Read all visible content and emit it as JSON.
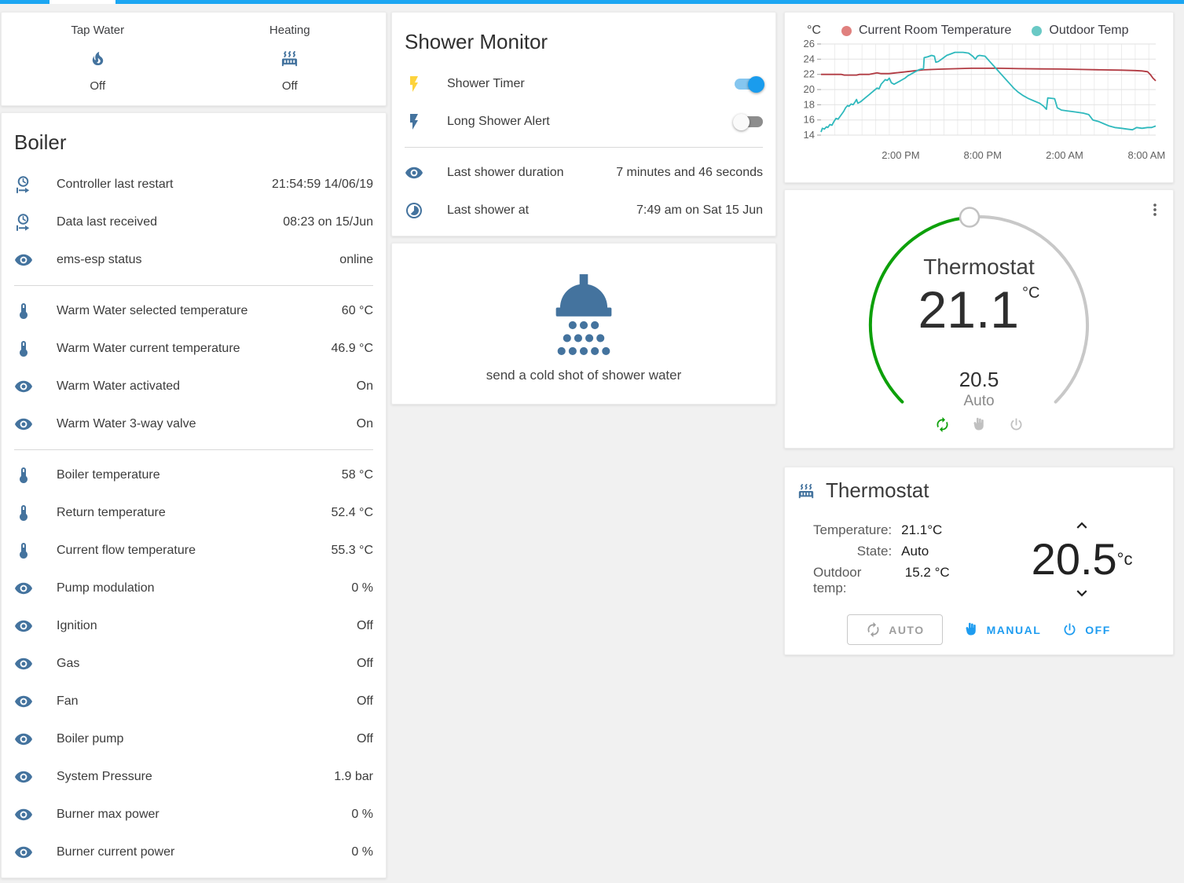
{
  "theme": {
    "header_bar": "#1ba6f2",
    "icon_blue": "#44739e",
    "flash_yellow": "#fdd33c",
    "toggle_on_knob": "#1a9ced",
    "toggle_on_track": "#85c6ef",
    "toggle_off_track": "#8d8d8d",
    "dial_green": "#0da00a",
    "action_blue": "#1e9cf0"
  },
  "glance_card": {
    "items": [
      {
        "label": "Tap Water",
        "icon": "fire-icon",
        "state": "Off"
      },
      {
        "label": "Heating",
        "icon": "radiator-icon",
        "state": "Off"
      }
    ]
  },
  "boiler_card": {
    "title": "Boiler",
    "sections": [
      [
        {
          "icon": "clock-start-icon",
          "label": "Controller last restart",
          "value": "21:54:59 14/06/19"
        },
        {
          "icon": "clock-start-icon",
          "label": "Data last received",
          "value": "08:23 on 15/Jun"
        },
        {
          "icon": "eye-icon",
          "label": "ems-esp status",
          "value": "online"
        }
      ],
      [
        {
          "icon": "thermometer-icon",
          "label": "Warm Water selected temperature",
          "value": "60 °C"
        },
        {
          "icon": "thermometer-icon",
          "label": "Warm Water current temperature",
          "value": "46.9 °C"
        },
        {
          "icon": "eye-icon",
          "label": "Warm Water activated",
          "value": "On"
        },
        {
          "icon": "eye-icon",
          "label": "Warm Water 3-way valve",
          "value": "On"
        }
      ],
      [
        {
          "icon": "thermometer-icon",
          "label": "Boiler temperature",
          "value": "58 °C"
        },
        {
          "icon": "thermometer-icon",
          "label": "Return temperature",
          "value": "52.4 °C"
        },
        {
          "icon": "thermometer-icon",
          "label": "Current flow temperature",
          "value": "55.3 °C"
        },
        {
          "icon": "eye-icon",
          "label": "Pump modulation",
          "value": "0 %"
        },
        {
          "icon": "eye-icon",
          "label": "Ignition",
          "value": "Off"
        },
        {
          "icon": "eye-icon",
          "label": "Gas",
          "value": "Off"
        },
        {
          "icon": "eye-icon",
          "label": "Fan",
          "value": "Off"
        },
        {
          "icon": "eye-icon",
          "label": "Boiler pump",
          "value": "Off"
        },
        {
          "icon": "eye-icon",
          "label": "System Pressure",
          "value": "1.9 bar"
        },
        {
          "icon": "eye-icon",
          "label": "Burner max power",
          "value": "0 %"
        },
        {
          "icon": "eye-icon",
          "label": "Burner current power",
          "value": "0 %"
        }
      ]
    ]
  },
  "shower_card": {
    "title": "Shower Monitor",
    "toggles": [
      {
        "icon": "flash-icon",
        "icon_color": "#fdd33c",
        "label": "Shower Timer",
        "state": "on"
      },
      {
        "icon": "flash-icon",
        "icon_color": "#44739e",
        "label": "Long Shower Alert",
        "state": "off"
      }
    ],
    "rows": [
      {
        "icon": "eye-icon",
        "label": "Last shower duration",
        "value": "7 minutes and 46 seconds"
      },
      {
        "icon": "timelapse-icon",
        "label": "Last shower at",
        "value": "7:49 am on Sat 15 Jun"
      }
    ]
  },
  "shower_action_card": {
    "icon": "shower-head-icon",
    "label": "send a cold shot of shower water"
  },
  "chart_data": {
    "type": "line",
    "ylabel": "°C",
    "ylim": [
      14,
      26
    ],
    "yticks": [
      14,
      16,
      18,
      20,
      22,
      24,
      26
    ],
    "x_hours_span": 24.5,
    "xticks": [
      {
        "t": 5.83,
        "label": "2:00 PM"
      },
      {
        "t": 11.83,
        "label": "8:00 PM"
      },
      {
        "t": 17.83,
        "label": "2:00 AM"
      },
      {
        "t": 23.83,
        "label": "8:00 AM"
      }
    ],
    "grid": true,
    "legend_position": "top",
    "series": [
      {
        "name": "Current Room Temperature",
        "color": "#b13a42",
        "dot_color": "#e0807e",
        "points": [
          [
            0,
            22.0
          ],
          [
            1.5,
            22.0
          ],
          [
            1.7,
            21.9
          ],
          [
            2.6,
            21.9
          ],
          [
            2.8,
            22.0
          ],
          [
            3.5,
            22.0
          ],
          [
            3.8,
            22.1
          ],
          [
            4.1,
            22.2
          ],
          [
            4.4,
            22.1
          ],
          [
            5.0,
            22.1
          ],
          [
            5.5,
            22.2
          ],
          [
            6.0,
            22.3
          ],
          [
            6.5,
            22.4
          ],
          [
            7.0,
            22.5
          ],
          [
            7.5,
            22.6
          ],
          [
            8.2,
            22.65
          ],
          [
            9.0,
            22.7
          ],
          [
            10.0,
            22.75
          ],
          [
            11.0,
            22.8
          ],
          [
            13.0,
            22.8
          ],
          [
            14.5,
            22.75
          ],
          [
            16.0,
            22.72
          ],
          [
            17.5,
            22.7
          ],
          [
            19.0,
            22.65
          ],
          [
            20.5,
            22.6
          ],
          [
            22.0,
            22.55
          ],
          [
            23.0,
            22.5
          ],
          [
            23.5,
            22.45
          ],
          [
            23.9,
            22.35
          ],
          [
            24.1,
            22.0
          ],
          [
            24.3,
            21.5
          ],
          [
            24.5,
            21.15
          ]
        ]
      },
      {
        "name": "Outdoor Temp",
        "color": "#2fb9bd",
        "dot_color": "#69c9c5",
        "points": [
          [
            0,
            14.4
          ],
          [
            0.1,
            14.9
          ],
          [
            0.25,
            14.8
          ],
          [
            0.4,
            15.1
          ],
          [
            0.5,
            15.0
          ],
          [
            0.65,
            15.4
          ],
          [
            0.8,
            15.3
          ],
          [
            0.95,
            15.8
          ],
          [
            1.1,
            16.2
          ],
          [
            1.25,
            16.1
          ],
          [
            1.45,
            16.6
          ],
          [
            1.65,
            17.1
          ],
          [
            1.8,
            17.6
          ],
          [
            1.95,
            17.9
          ],
          [
            2.05,
            17.8
          ],
          [
            2.2,
            18.1
          ],
          [
            2.35,
            18.0
          ],
          [
            2.5,
            18.4
          ],
          [
            2.6,
            18.7
          ],
          [
            2.7,
            18.2
          ],
          [
            2.9,
            18.4
          ],
          [
            3.1,
            18.7
          ],
          [
            3.3,
            19.0
          ],
          [
            3.5,
            19.3
          ],
          [
            3.7,
            19.6
          ],
          [
            3.9,
            19.9
          ],
          [
            4.1,
            20.2
          ],
          [
            4.25,
            20.1
          ],
          [
            4.4,
            20.7
          ],
          [
            4.55,
            21.0
          ],
          [
            4.7,
            21.3
          ],
          [
            4.85,
            21.2
          ],
          [
            5.0,
            21.5
          ],
          [
            5.15,
            20.9
          ],
          [
            5.35,
            20.7
          ],
          [
            5.55,
            20.9
          ],
          [
            5.75,
            21.1
          ],
          [
            5.95,
            21.3
          ],
          [
            6.15,
            21.5
          ],
          [
            6.35,
            21.8
          ],
          [
            6.55,
            22.0
          ],
          [
            6.75,
            22.2
          ],
          [
            6.95,
            22.4
          ],
          [
            7.15,
            22.6
          ],
          [
            7.35,
            22.7
          ],
          [
            7.5,
            22.7
          ],
          [
            7.55,
            24.2
          ],
          [
            7.8,
            24.3
          ],
          [
            8.1,
            24.5
          ],
          [
            8.3,
            24.4
          ],
          [
            8.4,
            23.6
          ],
          [
            8.6,
            23.7
          ],
          [
            8.9,
            24.1
          ],
          [
            9.2,
            24.5
          ],
          [
            9.5,
            24.7
          ],
          [
            9.8,
            24.9
          ],
          [
            10.4,
            24.9
          ],
          [
            10.8,
            24.8
          ],
          [
            11.1,
            24.4
          ],
          [
            11.3,
            24.0
          ],
          [
            11.45,
            24.4
          ],
          [
            11.6,
            24.5
          ],
          [
            12.0,
            24.4
          ],
          [
            12.3,
            23.8
          ],
          [
            12.6,
            23.2
          ],
          [
            12.9,
            22.6
          ],
          [
            13.2,
            22.0
          ],
          [
            13.5,
            21.4
          ],
          [
            13.8,
            20.8
          ],
          [
            14.1,
            20.2
          ],
          [
            14.4,
            19.7
          ],
          [
            14.8,
            19.2
          ],
          [
            15.2,
            18.8
          ],
          [
            15.6,
            18.5
          ],
          [
            16.0,
            18.2
          ],
          [
            16.3,
            17.8
          ],
          [
            16.5,
            17.4
          ],
          [
            16.6,
            18.9
          ],
          [
            17.1,
            18.8
          ],
          [
            17.3,
            17.6
          ],
          [
            17.6,
            17.3
          ],
          [
            18.0,
            17.2
          ],
          [
            18.4,
            17.1
          ],
          [
            18.8,
            17.0
          ],
          [
            19.2,
            16.9
          ],
          [
            19.6,
            16.7
          ],
          [
            19.9,
            16.0
          ],
          [
            20.3,
            15.8
          ],
          [
            20.7,
            15.5
          ],
          [
            21.1,
            15.2
          ],
          [
            21.5,
            15.0
          ],
          [
            22.0,
            14.9
          ],
          [
            22.4,
            14.8
          ],
          [
            22.8,
            14.7
          ],
          [
            23.1,
            15.0
          ],
          [
            23.5,
            14.9
          ],
          [
            23.9,
            15.0
          ],
          [
            24.2,
            15.0
          ],
          [
            24.5,
            15.2
          ]
        ]
      }
    ]
  },
  "dial_card": {
    "title": "Thermostat",
    "current": "21.1",
    "unit": "°C",
    "target": "20.5",
    "mode": "Auto",
    "actions": [
      {
        "icon": "autorenew-icon",
        "state": "active"
      },
      {
        "icon": "hand-icon",
        "state": "inactive"
      },
      {
        "icon": "power-icon",
        "state": "inactive"
      }
    ]
  },
  "thermostat_card": {
    "title": "Thermostat",
    "header_icon": "radiator-icon",
    "info_rows": [
      {
        "label": "Temperature:",
        "value": "21.1°C"
      },
      {
        "label": "State:",
        "value": "Auto"
      },
      {
        "label": "Outdoor temp:",
        "value": "15.2 °C"
      }
    ],
    "target": "20.5",
    "target_unit": "°c",
    "buttons": [
      {
        "icon": "autorenew-icon",
        "label": "AUTO",
        "style": "outlined"
      },
      {
        "icon": "hand-icon",
        "label": "MANUAL",
        "style": "plain"
      },
      {
        "icon": "power-icon",
        "label": "OFF",
        "style": "plain"
      }
    ]
  }
}
